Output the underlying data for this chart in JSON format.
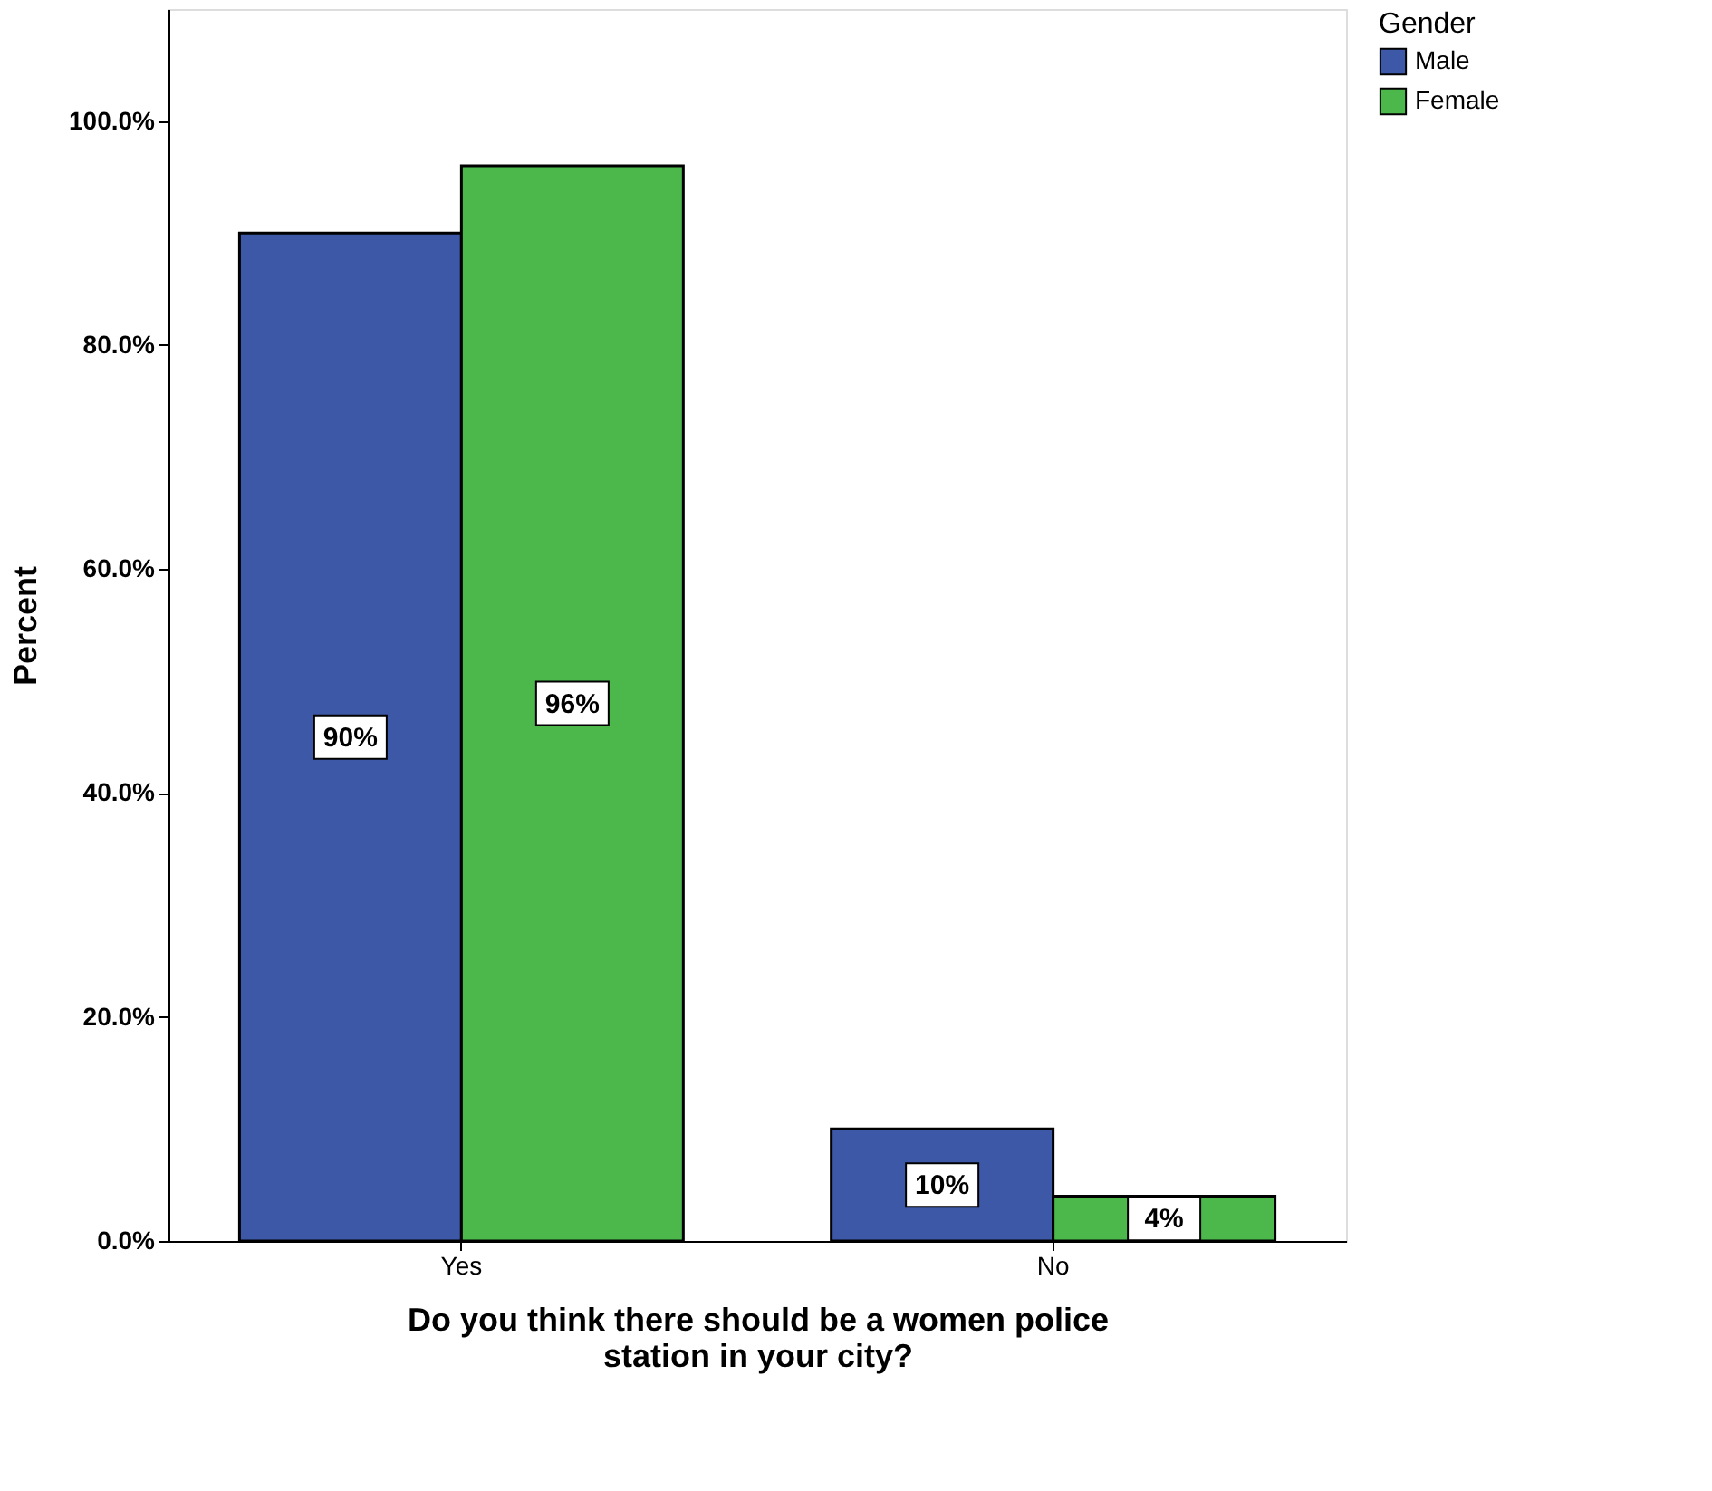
{
  "chart_data": {
    "type": "bar",
    "xlabel": "Do you think there should be a women police\nstation in your city?",
    "ylabel": "Percent",
    "legend_title": "Gender",
    "categories": [
      "Yes",
      "No"
    ],
    "series": [
      {
        "name": "Male",
        "color": "#3e58a8",
        "values": [
          90,
          10
        ],
        "value_labels": [
          "90%",
          "10%"
        ]
      },
      {
        "name": "Female",
        "color": "#4cb84c",
        "values": [
          96,
          4
        ],
        "value_labels": [
          "96%",
          "4%"
        ]
      }
    ],
    "ylim": [
      0,
      110
    ],
    "yticks": [
      {
        "value": 0,
        "label": "0.0%"
      },
      {
        "value": 20,
        "label": "20.0%"
      },
      {
        "value": 40,
        "label": "40.0%"
      },
      {
        "value": 60,
        "label": "60.0%"
      },
      {
        "value": 80,
        "label": "80.0%"
      },
      {
        "value": 100,
        "label": "100.0%"
      }
    ],
    "grid": false,
    "legend": "top right"
  }
}
